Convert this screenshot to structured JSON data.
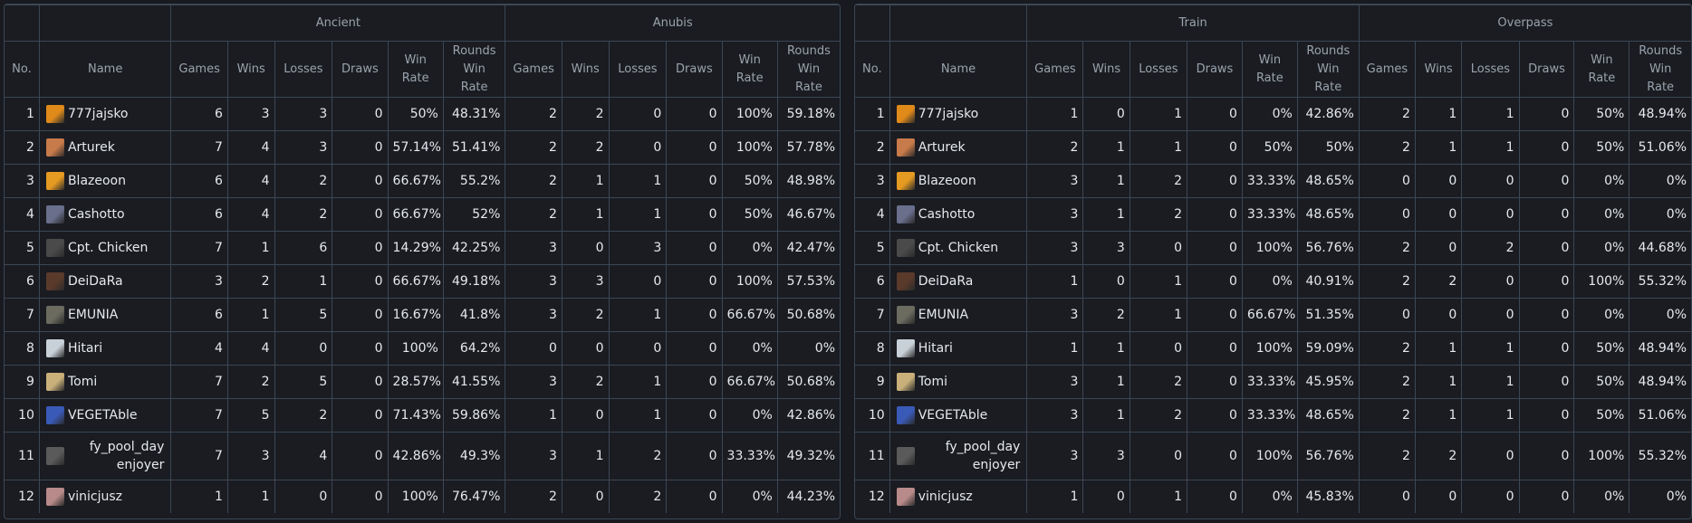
{
  "columns": {
    "no": "No.",
    "name": "Name",
    "games": "Games",
    "wins": "Wins",
    "losses": "Losses",
    "draws": "Draws",
    "win_rate": [
      "Win",
      "Rate"
    ],
    "rounds_win_rate": [
      "Rounds",
      "Win",
      "Rate"
    ]
  },
  "players": [
    {
      "no": "1",
      "name": "777jajsko",
      "avatar_color": "#e08a1a"
    },
    {
      "no": "2",
      "name": "Arturek",
      "avatar_color": "#c77a4a"
    },
    {
      "no": "3",
      "name": "Blazeoon",
      "avatar_color": "#e59a22"
    },
    {
      "no": "4",
      "name": "Cashotto",
      "avatar_color": "#6a6f8c"
    },
    {
      "no": "5",
      "name": "Cpt. Chicken",
      "avatar_color": "#4a4a4a"
    },
    {
      "no": "6",
      "name": "DeiDaRa",
      "avatar_color": "#5a3a2a"
    },
    {
      "no": "7",
      "name": "EMUNIA",
      "avatar_color": "#6b6b60"
    },
    {
      "no": "8",
      "name": "Hitari",
      "avatar_color": "#c8d0d8"
    },
    {
      "no": "9",
      "name": "Tomi",
      "avatar_color": "#c9b07a"
    },
    {
      "no": "10",
      "name": "VEGETAble",
      "avatar_color": "#3a5ab8"
    },
    {
      "no": "11",
      "name": "fy_pool_day enjoyer",
      "avatar_color": "#5a5a5a"
    },
    {
      "no": "12",
      "name": "vinicjusz",
      "avatar_color": "#b88a8a"
    }
  ],
  "panels": [
    {
      "maps": [
        {
          "name": "Ancient",
          "rows": [
            [
              "6",
              "3",
              "3",
              "0",
              "50%",
              "48.31%"
            ],
            [
              "7",
              "4",
              "3",
              "0",
              "57.14%",
              "51.41%"
            ],
            [
              "6",
              "4",
              "2",
              "0",
              "66.67%",
              "55.2%"
            ],
            [
              "6",
              "4",
              "2",
              "0",
              "66.67%",
              "52%"
            ],
            [
              "7",
              "1",
              "6",
              "0",
              "14.29%",
              "42.25%"
            ],
            [
              "3",
              "2",
              "1",
              "0",
              "66.67%",
              "49.18%"
            ],
            [
              "6",
              "1",
              "5",
              "0",
              "16.67%",
              "41.8%"
            ],
            [
              "4",
              "4",
              "0",
              "0",
              "100%",
              "64.2%"
            ],
            [
              "7",
              "2",
              "5",
              "0",
              "28.57%",
              "41.55%"
            ],
            [
              "7",
              "5",
              "2",
              "0",
              "71.43%",
              "59.86%"
            ],
            [
              "7",
              "3",
              "4",
              "0",
              "42.86%",
              "49.3%"
            ],
            [
              "1",
              "1",
              "0",
              "0",
              "100%",
              "76.47%"
            ]
          ]
        },
        {
          "name": "Anubis",
          "rows": [
            [
              "2",
              "2",
              "0",
              "0",
              "100%",
              "59.18%"
            ],
            [
              "2",
              "2",
              "0",
              "0",
              "100%",
              "57.78%"
            ],
            [
              "2",
              "1",
              "1",
              "0",
              "50%",
              "48.98%"
            ],
            [
              "2",
              "1",
              "1",
              "0",
              "50%",
              "46.67%"
            ],
            [
              "3",
              "0",
              "3",
              "0",
              "0%",
              "42.47%"
            ],
            [
              "3",
              "3",
              "0",
              "0",
              "100%",
              "57.53%"
            ],
            [
              "3",
              "2",
              "1",
              "0",
              "66.67%",
              "50.68%"
            ],
            [
              "0",
              "0",
              "0",
              "0",
              "0%",
              "0%"
            ],
            [
              "3",
              "2",
              "1",
              "0",
              "66.67%",
              "50.68%"
            ],
            [
              "1",
              "0",
              "1",
              "0",
              "0%",
              "42.86%"
            ],
            [
              "3",
              "1",
              "2",
              "0",
              "33.33%",
              "49.32%"
            ],
            [
              "2",
              "0",
              "2",
              "0",
              "0%",
              "44.23%"
            ]
          ]
        }
      ]
    },
    {
      "maps": [
        {
          "name": "Train",
          "rows": [
            [
              "1",
              "0",
              "1",
              "0",
              "0%",
              "42.86%"
            ],
            [
              "2",
              "1",
              "1",
              "0",
              "50%",
              "50%"
            ],
            [
              "3",
              "1",
              "2",
              "0",
              "33.33%",
              "48.65%"
            ],
            [
              "3",
              "1",
              "2",
              "0",
              "33.33%",
              "48.65%"
            ],
            [
              "3",
              "3",
              "0",
              "0",
              "100%",
              "56.76%"
            ],
            [
              "1",
              "0",
              "1",
              "0",
              "0%",
              "40.91%"
            ],
            [
              "3",
              "2",
              "1",
              "0",
              "66.67%",
              "51.35%"
            ],
            [
              "1",
              "1",
              "0",
              "0",
              "100%",
              "59.09%"
            ],
            [
              "3",
              "1",
              "2",
              "0",
              "33.33%",
              "45.95%"
            ],
            [
              "3",
              "1",
              "2",
              "0",
              "33.33%",
              "48.65%"
            ],
            [
              "3",
              "3",
              "0",
              "0",
              "100%",
              "56.76%"
            ],
            [
              "1",
              "0",
              "1",
              "0",
              "0%",
              "45.83%"
            ]
          ]
        },
        {
          "name": "Overpass",
          "rows": [
            [
              "2",
              "1",
              "1",
              "0",
              "50%",
              "48.94%"
            ],
            [
              "2",
              "1",
              "1",
              "0",
              "50%",
              "51.06%"
            ],
            [
              "0",
              "0",
              "0",
              "0",
              "0%",
              "0%"
            ],
            [
              "0",
              "0",
              "0",
              "0",
              "0%",
              "0%"
            ],
            [
              "2",
              "0",
              "2",
              "0",
              "0%",
              "44.68%"
            ],
            [
              "2",
              "2",
              "0",
              "0",
              "100%",
              "55.32%"
            ],
            [
              "0",
              "0",
              "0",
              "0",
              "0%",
              "0%"
            ],
            [
              "2",
              "1",
              "1",
              "0",
              "50%",
              "48.94%"
            ],
            [
              "2",
              "1",
              "1",
              "0",
              "50%",
              "48.94%"
            ],
            [
              "2",
              "1",
              "1",
              "0",
              "50%",
              "51.06%"
            ],
            [
              "2",
              "2",
              "0",
              "0",
              "100%",
              "55.32%"
            ],
            [
              "0",
              "0",
              "0",
              "0",
              "0%",
              "0%"
            ]
          ]
        }
      ]
    }
  ]
}
